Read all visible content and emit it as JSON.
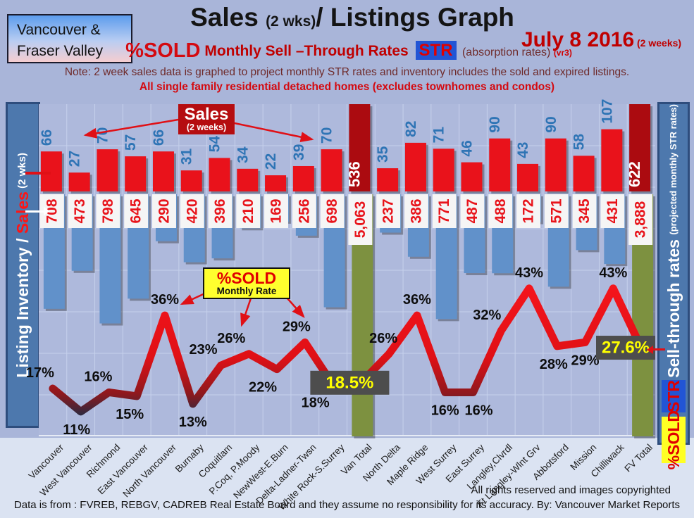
{
  "header": {
    "region_line1": "Vancouver &",
    "region_line2": "Fraser Valley",
    "title_part1": "Sales ",
    "title_paren": "(2 wks)",
    "title_part2": "/ Listings Graph",
    "date_main": "July 8 2016",
    "date_suffix": " (2 weeks)",
    "subtitle_psold": "%SOLD",
    "subtitle_rates": " Monthly Sell –Through Rates ",
    "subtitle_str_badge": "STR",
    "subtitle_absorption": " (absorption rates) ",
    "subtitle_version": "(vr3)",
    "note": "Note: 2 week sales data is graphed to project monthly STR rates and inventory includes the sold and expired listings.",
    "scope": "All single family residential detached homes (excludes townhomes and condos)"
  },
  "left_axis": {
    "label_white1": "Listing Inventory / ",
    "label_red": "Sales",
    "label_white2": " (2  wks)"
  },
  "right_axis": {
    "label_main": "Sell-through rates ",
    "label_paren": "(projected monthly STR rates)",
    "str_badge": "STR",
    "psold_badge": "%SOLD"
  },
  "callouts": {
    "sales_line1": "Sales",
    "sales_line2": "(2 weeks)",
    "psold_line1": "%SOLD",
    "psold_line2": "Monthly Rate"
  },
  "footer": {
    "rights": "All rights reserved and  images copyrighted",
    "source": "Data is from : FVREB, REBGV, CADREB Real Estate Board and they assume no responsibility for its accuracy. By: Vancouver Market Reports"
  },
  "colors": {
    "red_bar": "#e9121b",
    "total_red_bar": "#ab0b10",
    "blue_bar": "#6191ca",
    "green_bar": "#7d9140",
    "line_red": "#e01016",
    "line_dark": "#232b42",
    "sales_label": "#2e74b5",
    "inventory_label": "#e8141b",
    "pct_box_bg": "#4d4d4d",
    "pct_box_text": "#ffff00",
    "plot_bg": "#aeb9dc",
    "grid": "#c6d1ec",
    "white_box": "#f5f5f5",
    "shadow": "rgba(0,0,0,0.3)"
  },
  "chart_data": {
    "type": "combo-bar-line",
    "title": "Sales (2 wks)/ Listings Graph",
    "date": "July 8 2016",
    "categories": [
      "Vancouver",
      "West Vancouver",
      "Richmond",
      "East Vancouver",
      "North Vancouver",
      "Burnaby",
      "Coquitlam",
      "P.Coq, P.Moody",
      "NewWest-E.Burn",
      "Delta-Ladner-Twsn",
      "White Rock-S.Surrey",
      "Van Total",
      "North Delta",
      "Maple Ridge",
      "West Surrey",
      "East Surrey",
      "Langley,Clvrdl",
      "Ft Langley-Wlnt Grv",
      "Abbotsford",
      "Mission",
      "Chilliwack",
      "FV Total"
    ],
    "series": [
      {
        "name": "Sales (2 weeks)",
        "type": "bar",
        "values": [
          66,
          27,
          70,
          57,
          66,
          31,
          54,
          34,
          22,
          39,
          70,
          536,
          35,
          82,
          71,
          46,
          90,
          43,
          90,
          58,
          107,
          622
        ]
      },
      {
        "name": "Listing Inventory",
        "type": "bar-down",
        "values": [
          708,
          473,
          798,
          645,
          290,
          420,
          396,
          210,
          169,
          256,
          698,
          5063,
          237,
          386,
          771,
          487,
          488,
          172,
          571,
          345,
          431,
          3888
        ]
      },
      {
        "name": "%SOLD Monthly Rate (STR)",
        "type": "line",
        "values": [
          17,
          11,
          16,
          15,
          36,
          13,
          23,
          26,
          22,
          29,
          18,
          18.5,
          26,
          36,
          16,
          16,
          32,
          43,
          28,
          29,
          43,
          27.6
        ]
      }
    ],
    "display": {
      "sales_labels": [
        "66",
        "27",
        "70",
        "57",
        "66",
        "31",
        "54",
        "34",
        "22",
        "39",
        "70",
        "536",
        "35",
        "82",
        "71",
        "46",
        "90",
        "43",
        "90",
        "58",
        "107",
        "622"
      ],
      "inventory_labels": [
        "708",
        "473",
        "798",
        "645",
        "290",
        "420",
        "396",
        "210",
        "169",
        "256",
        "698",
        "5,063",
        "237",
        "386",
        "771",
        "487",
        "488",
        "172",
        "571",
        "345",
        "431",
        "3,888"
      ],
      "pct_labels": [
        "17%",
        "11%",
        "16%",
        "15%",
        "36%",
        "13%",
        "23%",
        "26%",
        "22%",
        "29%",
        "18%",
        "18.5%",
        "26%",
        "36%",
        "16%",
        "16%",
        "32%",
        "43%",
        "28%",
        "29%",
        "43%",
        "27.6%"
      ]
    },
    "totals_index": [
      11,
      21
    ],
    "label_pos": [
      "a",
      "b",
      "a",
      "b",
      "a",
      "b",
      "a",
      "a",
      "b",
      "a",
      "b",
      "box",
      "a",
      "a",
      "b",
      "b",
      "a",
      "a",
      "b",
      "b",
      "a",
      "box"
    ],
    "label_dx": [
      -18,
      -6,
      -15,
      -10,
      0,
      0,
      -25,
      -25,
      -20,
      -12,
      -25,
      0,
      -8,
      0,
      0,
      8,
      -20,
      0,
      -5,
      0,
      0,
      0
    ],
    "ylabel_left": "Listing Inventory / Sales (2 wks)",
    "ylabel_right": "Sell-through rates (projected monthly STR rates)",
    "pct_axis_range": [
      0,
      50
    ],
    "grid": true,
    "legend_position": "none"
  }
}
